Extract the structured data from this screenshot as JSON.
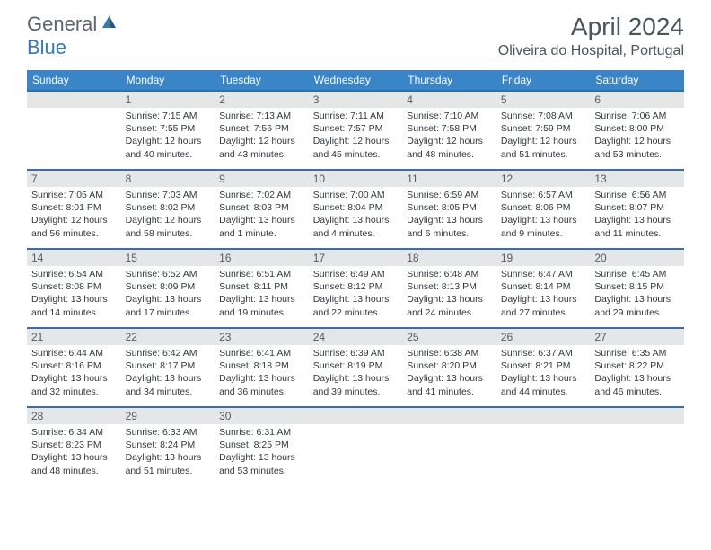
{
  "logo": {
    "part1": "General",
    "part2": "Blue"
  },
  "header": {
    "title": "April 2024",
    "location": "Oliveira do Hospital, Portugal"
  },
  "colors": {
    "header_bg": "#3a84c8",
    "header_text": "#ffffff",
    "row_border": "#3a6fa0",
    "daynum_bg": "#e4e6e8",
    "daynum_text": "#555c64",
    "body_text": "#333840",
    "logo_gray": "#5a6570",
    "logo_blue": "#2f7bc2",
    "title_color": "#4a5560"
  },
  "weekdays": [
    "Sunday",
    "Monday",
    "Tuesday",
    "Wednesday",
    "Thursday",
    "Friday",
    "Saturday"
  ],
  "weeks": [
    [
      null,
      {
        "d": "1",
        "sr": "Sunrise: 7:15 AM",
        "ss": "Sunset: 7:55 PM",
        "dl1": "Daylight: 12 hours",
        "dl2": "and 40 minutes."
      },
      {
        "d": "2",
        "sr": "Sunrise: 7:13 AM",
        "ss": "Sunset: 7:56 PM",
        "dl1": "Daylight: 12 hours",
        "dl2": "and 43 minutes."
      },
      {
        "d": "3",
        "sr": "Sunrise: 7:11 AM",
        "ss": "Sunset: 7:57 PM",
        "dl1": "Daylight: 12 hours",
        "dl2": "and 45 minutes."
      },
      {
        "d": "4",
        "sr": "Sunrise: 7:10 AM",
        "ss": "Sunset: 7:58 PM",
        "dl1": "Daylight: 12 hours",
        "dl2": "and 48 minutes."
      },
      {
        "d": "5",
        "sr": "Sunrise: 7:08 AM",
        "ss": "Sunset: 7:59 PM",
        "dl1": "Daylight: 12 hours",
        "dl2": "and 51 minutes."
      },
      {
        "d": "6",
        "sr": "Sunrise: 7:06 AM",
        "ss": "Sunset: 8:00 PM",
        "dl1": "Daylight: 12 hours",
        "dl2": "and 53 minutes."
      }
    ],
    [
      {
        "d": "7",
        "sr": "Sunrise: 7:05 AM",
        "ss": "Sunset: 8:01 PM",
        "dl1": "Daylight: 12 hours",
        "dl2": "and 56 minutes."
      },
      {
        "d": "8",
        "sr": "Sunrise: 7:03 AM",
        "ss": "Sunset: 8:02 PM",
        "dl1": "Daylight: 12 hours",
        "dl2": "and 58 minutes."
      },
      {
        "d": "9",
        "sr": "Sunrise: 7:02 AM",
        "ss": "Sunset: 8:03 PM",
        "dl1": "Daylight: 13 hours",
        "dl2": "and 1 minute."
      },
      {
        "d": "10",
        "sr": "Sunrise: 7:00 AM",
        "ss": "Sunset: 8:04 PM",
        "dl1": "Daylight: 13 hours",
        "dl2": "and 4 minutes."
      },
      {
        "d": "11",
        "sr": "Sunrise: 6:59 AM",
        "ss": "Sunset: 8:05 PM",
        "dl1": "Daylight: 13 hours",
        "dl2": "and 6 minutes."
      },
      {
        "d": "12",
        "sr": "Sunrise: 6:57 AM",
        "ss": "Sunset: 8:06 PM",
        "dl1": "Daylight: 13 hours",
        "dl2": "and 9 minutes."
      },
      {
        "d": "13",
        "sr": "Sunrise: 6:56 AM",
        "ss": "Sunset: 8:07 PM",
        "dl1": "Daylight: 13 hours",
        "dl2": "and 11 minutes."
      }
    ],
    [
      {
        "d": "14",
        "sr": "Sunrise: 6:54 AM",
        "ss": "Sunset: 8:08 PM",
        "dl1": "Daylight: 13 hours",
        "dl2": "and 14 minutes."
      },
      {
        "d": "15",
        "sr": "Sunrise: 6:52 AM",
        "ss": "Sunset: 8:09 PM",
        "dl1": "Daylight: 13 hours",
        "dl2": "and 17 minutes."
      },
      {
        "d": "16",
        "sr": "Sunrise: 6:51 AM",
        "ss": "Sunset: 8:11 PM",
        "dl1": "Daylight: 13 hours",
        "dl2": "and 19 minutes."
      },
      {
        "d": "17",
        "sr": "Sunrise: 6:49 AM",
        "ss": "Sunset: 8:12 PM",
        "dl1": "Daylight: 13 hours",
        "dl2": "and 22 minutes."
      },
      {
        "d": "18",
        "sr": "Sunrise: 6:48 AM",
        "ss": "Sunset: 8:13 PM",
        "dl1": "Daylight: 13 hours",
        "dl2": "and 24 minutes."
      },
      {
        "d": "19",
        "sr": "Sunrise: 6:47 AM",
        "ss": "Sunset: 8:14 PM",
        "dl1": "Daylight: 13 hours",
        "dl2": "and 27 minutes."
      },
      {
        "d": "20",
        "sr": "Sunrise: 6:45 AM",
        "ss": "Sunset: 8:15 PM",
        "dl1": "Daylight: 13 hours",
        "dl2": "and 29 minutes."
      }
    ],
    [
      {
        "d": "21",
        "sr": "Sunrise: 6:44 AM",
        "ss": "Sunset: 8:16 PM",
        "dl1": "Daylight: 13 hours",
        "dl2": "and 32 minutes."
      },
      {
        "d": "22",
        "sr": "Sunrise: 6:42 AM",
        "ss": "Sunset: 8:17 PM",
        "dl1": "Daylight: 13 hours",
        "dl2": "and 34 minutes."
      },
      {
        "d": "23",
        "sr": "Sunrise: 6:41 AM",
        "ss": "Sunset: 8:18 PM",
        "dl1": "Daylight: 13 hours",
        "dl2": "and 36 minutes."
      },
      {
        "d": "24",
        "sr": "Sunrise: 6:39 AM",
        "ss": "Sunset: 8:19 PM",
        "dl1": "Daylight: 13 hours",
        "dl2": "and 39 minutes."
      },
      {
        "d": "25",
        "sr": "Sunrise: 6:38 AM",
        "ss": "Sunset: 8:20 PM",
        "dl1": "Daylight: 13 hours",
        "dl2": "and 41 minutes."
      },
      {
        "d": "26",
        "sr": "Sunrise: 6:37 AM",
        "ss": "Sunset: 8:21 PM",
        "dl1": "Daylight: 13 hours",
        "dl2": "and 44 minutes."
      },
      {
        "d": "27",
        "sr": "Sunrise: 6:35 AM",
        "ss": "Sunset: 8:22 PM",
        "dl1": "Daylight: 13 hours",
        "dl2": "and 46 minutes."
      }
    ],
    [
      {
        "d": "28",
        "sr": "Sunrise: 6:34 AM",
        "ss": "Sunset: 8:23 PM",
        "dl1": "Daylight: 13 hours",
        "dl2": "and 48 minutes."
      },
      {
        "d": "29",
        "sr": "Sunrise: 6:33 AM",
        "ss": "Sunset: 8:24 PM",
        "dl1": "Daylight: 13 hours",
        "dl2": "and 51 minutes."
      },
      {
        "d": "30",
        "sr": "Sunrise: 6:31 AM",
        "ss": "Sunset: 8:25 PM",
        "dl1": "Daylight: 13 hours",
        "dl2": "and 53 minutes."
      },
      null,
      null,
      null,
      null
    ]
  ]
}
